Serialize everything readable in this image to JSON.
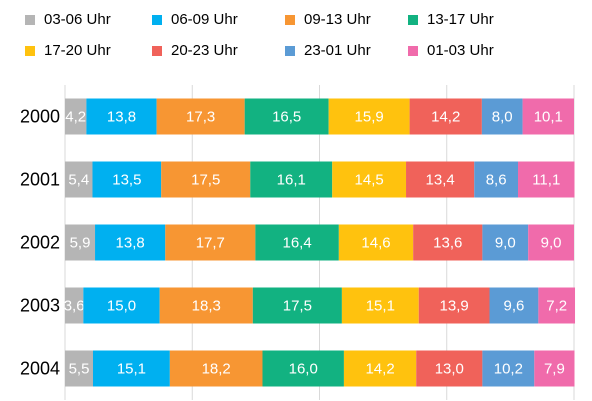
{
  "chart_data": {
    "type": "stacked-bar-horizontal",
    "categories": [
      "2000",
      "2001",
      "2002",
      "2003",
      "2004"
    ],
    "series": [
      {
        "name": "03-06 Uhr",
        "color": "#b5b5b5",
        "values": [
          4.2,
          5.4,
          5.9,
          3.6,
          5.5
        ],
        "value_labels": [
          "4,2",
          "5,4",
          "5,9",
          "3,6",
          "5,5"
        ]
      },
      {
        "name": "06-09 Uhr",
        "color": "#00b0f0",
        "values": [
          13.8,
          13.5,
          13.8,
          15.0,
          15.1
        ],
        "value_labels": [
          "13,8",
          "13,5",
          "13,8",
          "15,0",
          "15,1"
        ]
      },
      {
        "name": "09-13 Uhr",
        "color": "#f79633",
        "values": [
          17.3,
          17.5,
          17.7,
          18.3,
          18.2
        ],
        "value_labels": [
          "17,3",
          "17,5",
          "17,7",
          "18,3",
          "18,2"
        ]
      },
      {
        "name": "13-17 Uhr",
        "color": "#12b281",
        "values": [
          16.5,
          16.1,
          16.4,
          17.5,
          16.0
        ],
        "value_labels": [
          "16,5",
          "16,1",
          "16,4",
          "17,5",
          "16,0"
        ]
      },
      {
        "name": "17-20 Uhr",
        "color": "#ffc20e",
        "values": [
          15.9,
          14.5,
          14.6,
          15.1,
          14.2
        ],
        "value_labels": [
          "15,9",
          "14,5",
          "14,6",
          "15,1",
          "14,2"
        ]
      },
      {
        "name": "20-23 Uhr",
        "color": "#f0625a",
        "values": [
          14.2,
          13.4,
          13.6,
          13.9,
          13.0
        ],
        "value_labels": [
          "14,2",
          "13,4",
          "13,6",
          "13,9",
          "13,0"
        ]
      },
      {
        "name": "23-01 Uhr",
        "color": "#5b9bd5",
        "values": [
          8.0,
          8.6,
          9.0,
          9.6,
          10.2
        ],
        "value_labels": [
          "8,0",
          "8,6",
          "9,0",
          "9,6",
          "10,2"
        ]
      },
      {
        "name": "01-03 Uhr",
        "color": "#f06bab",
        "values": [
          10.1,
          11.1,
          9.0,
          7.2,
          7.9
        ],
        "value_labels": [
          "10,1",
          "11,1",
          "9,0",
          "7,2",
          "7,9"
        ]
      }
    ],
    "xlim": [
      0,
      100
    ],
    "xticks": [
      0,
      25,
      50,
      75,
      100
    ],
    "grid": true
  }
}
